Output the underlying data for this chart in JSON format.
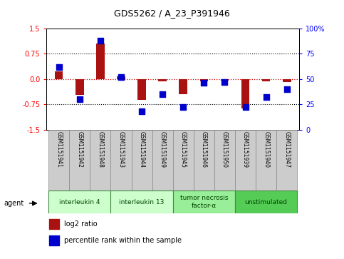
{
  "title": "GDS5262 / A_23_P391946",
  "samples": [
    "GSM1151941",
    "GSM1151942",
    "GSM1151948",
    "GSM1151943",
    "GSM1151944",
    "GSM1151949",
    "GSM1151945",
    "GSM1151946",
    "GSM1151950",
    "GSM1151939",
    "GSM1151940",
    "GSM1151947"
  ],
  "log2_ratio": [
    0.22,
    -0.48,
    1.05,
    0.07,
    -0.62,
    -0.08,
    -0.45,
    -0.07,
    -0.04,
    -0.87,
    -0.07,
    -0.1
  ],
  "percentile": [
    62,
    30,
    88,
    52,
    18,
    35,
    22,
    46,
    47,
    22,
    32,
    40
  ],
  "groups": [
    {
      "label": "interleukin 4",
      "start": 0,
      "end": 3,
      "color": "#ccffcc"
    },
    {
      "label": "interleukin 13",
      "start": 3,
      "end": 6,
      "color": "#ccffcc"
    },
    {
      "label": "tumor necrosis\nfactor-α",
      "start": 6,
      "end": 9,
      "color": "#99ee99"
    },
    {
      "label": "unstimulated",
      "start": 9,
      "end": 12,
      "color": "#55cc55"
    }
  ],
  "ylim": [
    -1.5,
    1.5
  ],
  "yticks_left": [
    -1.5,
    -0.75,
    0.0,
    0.75,
    1.5
  ],
  "yticks_right": [
    0,
    25,
    50,
    75,
    100
  ],
  "hline_zero_color": "#cc0000",
  "dotted_line_color": "#000000",
  "bar_color": "#aa1111",
  "dot_color": "#0000cc",
  "legend_bar_label": "log2 ratio",
  "legend_dot_label": "percentile rank within the sample",
  "sample_box_color": "#cccccc",
  "agent_label": "agent"
}
